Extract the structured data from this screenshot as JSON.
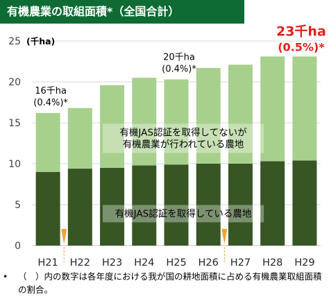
{
  "header": {
    "title": "有機農業の取組面積*（全国合計）"
  },
  "colors": {
    "title_bg": "#0e6b33",
    "uncertified": "#a8d08d",
    "certified": "#375623",
    "highlight": "#e0201a",
    "marker": "#f4a035"
  },
  "chart_data": {
    "type": "bar",
    "stacked": true,
    "unit_label": "(千ha)",
    "categories": [
      "H21",
      "H22",
      "H23",
      "H24",
      "H25",
      "H26",
      "H27",
      "H28",
      "H29"
    ],
    "series": [
      {
        "name": "有機JAS認証を取得している農地",
        "values": [
          9.0,
          9.4,
          9.5,
          9.8,
          9.9,
          10.0,
          10.0,
          10.3,
          10.4
        ]
      },
      {
        "name": "有機JAS認証を取得してないが\n有機農業が行われている農地",
        "values": [
          7.2,
          7.4,
          10.1,
          10.7,
          10.4,
          11.7,
          12.1,
          12.8,
          12.7
        ]
      }
    ],
    "ylim": [
      0,
      25
    ],
    "yticks": [
      0,
      5,
      10,
      15,
      20,
      25
    ],
    "grid": true,
    "annotations": [
      {
        "category": "H21",
        "lines": [
          "16千ha",
          "(0.4%)*"
        ],
        "highlight": false
      },
      {
        "category": "H25",
        "lines": [
          "20千ha",
          "(0.4%)*"
        ],
        "highlight": false
      },
      {
        "category": "H29",
        "lines": [
          "23千ha",
          "(0.5%)*"
        ],
        "highlight": true
      }
    ],
    "series_label_boxes": [
      {
        "series": 1,
        "lines": [
          "有機JAS認証を取得してないが",
          "有機農業が行われている農地"
        ]
      },
      {
        "series": 0,
        "lines": [
          "有機JAS認証を取得している農地"
        ]
      }
    ],
    "break_markers": [
      "H21",
      "H26"
    ]
  },
  "footnote": {
    "bullet": "•",
    "text": "（　）内の数字は各年度における我が国の耕地面積に占める有機農業取組面積の割合。"
  }
}
